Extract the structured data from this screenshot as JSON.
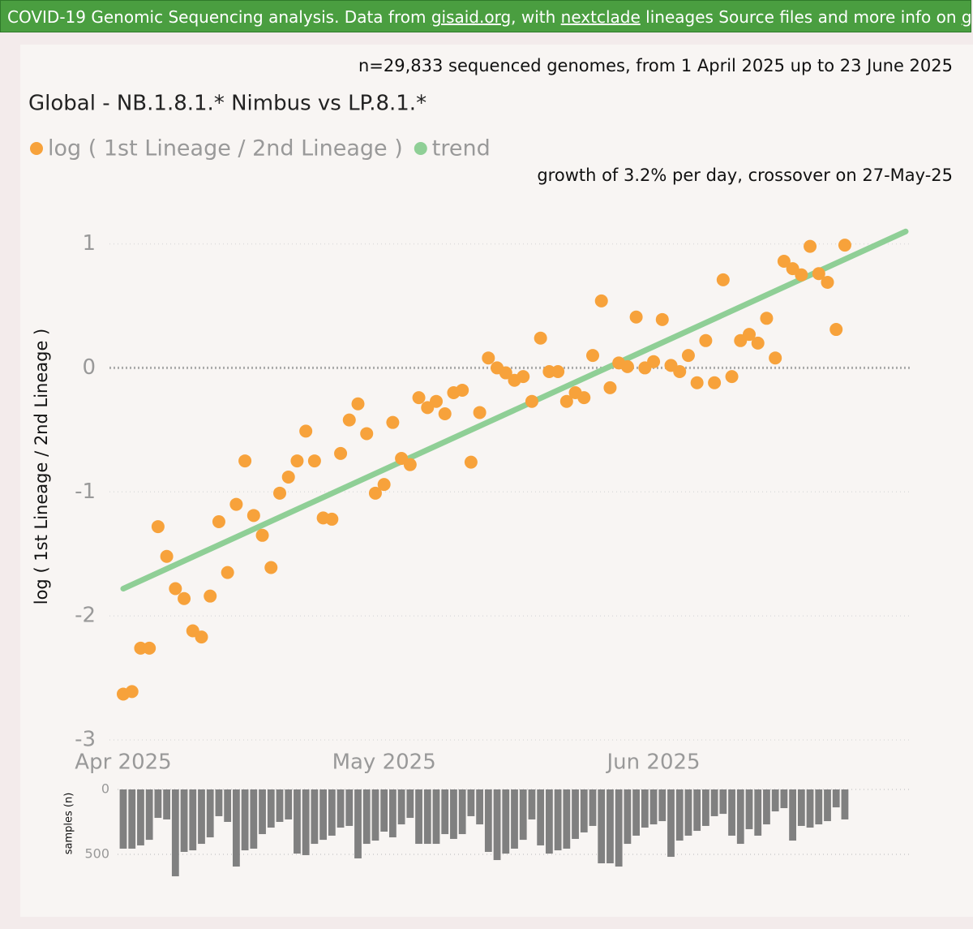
{
  "header": {
    "segments": [
      "COVID-19 Genomic Sequencing analysis. Data from ",
      "gisaid.org",
      ", with ",
      "nextclade",
      " lineages Source files and more info on ",
      "github"
    ]
  },
  "chart_data": [
    {
      "type": "scatter",
      "title": "Global - NB.1.8.1.* Nimbus vs LP.8.1.*",
      "subtitle": "n=29,833 sequenced genomes, from 1 April 2025 up to 23 June 2025",
      "annotation": "growth of 3.2% per day, crossover on 27-May-25",
      "ylabel": "log ( 1st Lineage / 2nd Lineage )",
      "xlim": [
        "2025-04-01",
        "2025-06-30"
      ],
      "xticks": [
        {
          "value": "2025-04-01",
          "label": "Apr 2025"
        },
        {
          "value": "2025-05-01",
          "label": "May 2025"
        },
        {
          "value": "2025-06-01",
          "label": "Jun 2025"
        }
      ],
      "ylim": [
        -3,
        1.2
      ],
      "yticks": [
        1,
        0,
        -1,
        -2,
        -3
      ],
      "grid": true,
      "legend": "top-left",
      "series": [
        {
          "name": "log ( 1st Lineage / 2nd Lineage )",
          "color": "#f7a23b",
          "mode": "markers",
          "x": [
            "2025-04-01",
            "2025-04-02",
            "2025-04-03",
            "2025-04-04",
            "2025-04-05",
            "2025-04-06",
            "2025-04-07",
            "2025-04-08",
            "2025-04-09",
            "2025-04-10",
            "2025-04-11",
            "2025-04-12",
            "2025-04-13",
            "2025-04-14",
            "2025-04-15",
            "2025-04-16",
            "2025-04-17",
            "2025-04-18",
            "2025-04-19",
            "2025-04-20",
            "2025-04-21",
            "2025-04-22",
            "2025-04-23",
            "2025-04-24",
            "2025-04-25",
            "2025-04-26",
            "2025-04-27",
            "2025-04-28",
            "2025-04-29",
            "2025-04-30",
            "2025-05-01",
            "2025-05-02",
            "2025-05-03",
            "2025-05-04",
            "2025-05-05",
            "2025-05-06",
            "2025-05-07",
            "2025-05-08",
            "2025-05-09",
            "2025-05-10",
            "2025-05-11",
            "2025-05-12",
            "2025-05-13",
            "2025-05-14",
            "2025-05-15",
            "2025-05-16",
            "2025-05-17",
            "2025-05-18",
            "2025-05-19",
            "2025-05-20",
            "2025-05-21",
            "2025-05-22",
            "2025-05-23",
            "2025-05-24",
            "2025-05-25",
            "2025-05-26",
            "2025-05-27",
            "2025-05-28",
            "2025-05-29",
            "2025-05-30",
            "2025-05-31",
            "2025-06-01",
            "2025-06-02",
            "2025-06-03",
            "2025-06-04",
            "2025-06-05",
            "2025-06-06",
            "2025-06-07",
            "2025-06-08",
            "2025-06-09",
            "2025-06-10",
            "2025-06-11",
            "2025-06-12",
            "2025-06-13",
            "2025-06-14",
            "2025-06-15",
            "2025-06-16",
            "2025-06-17",
            "2025-06-18",
            "2025-06-19",
            "2025-06-20",
            "2025-06-21",
            "2025-06-22",
            "2025-06-23"
          ],
          "values": [
            -2.63,
            -2.61,
            -2.26,
            -2.26,
            -1.28,
            -1.52,
            -1.78,
            -1.86,
            -2.12,
            -2.17,
            -1.84,
            -1.24,
            -1.65,
            -1.1,
            -0.75,
            -1.19,
            -1.35,
            -1.61,
            -1.01,
            -0.88,
            -0.75,
            -0.51,
            -0.75,
            -1.21,
            -1.22,
            -0.69,
            -0.42,
            -0.29,
            -0.53,
            -1.01,
            -0.94,
            -0.44,
            -0.73,
            -0.78,
            -0.24,
            -0.32,
            -0.27,
            -0.37,
            -0.2,
            -0.18,
            -0.76,
            -0.36,
            0.08,
            0.0,
            -0.04,
            -0.1,
            -0.07,
            -0.27,
            0.24,
            -0.03,
            -0.03,
            -0.27,
            -0.2,
            -0.24,
            0.1,
            0.54,
            -0.16,
            0.04,
            0.01,
            0.41,
            0.0,
            0.05,
            0.39,
            0.02,
            -0.03,
            0.1,
            -0.12,
            0.22,
            -0.12,
            0.71,
            -0.07,
            0.22,
            0.27,
            0.2,
            0.4,
            0.08,
            0.86,
            0.8,
            0.75,
            0.98,
            0.76,
            0.69,
            0.31,
            0.99
          ]
        },
        {
          "name": "trend",
          "color": "#8fcf96",
          "mode": "line",
          "x": [
            "2025-04-01",
            "2025-06-30"
          ],
          "values": [
            -1.78,
            1.1
          ]
        }
      ]
    },
    {
      "type": "bar",
      "ylabel": "samples (n)",
      "xlim": [
        "2025-04-01",
        "2025-06-30"
      ],
      "ylim": [
        0,
        700
      ],
      "y_inverted": true,
      "yticks": [
        0,
        500
      ],
      "color": "#808080",
      "x": [
        "2025-04-01",
        "2025-04-02",
        "2025-04-03",
        "2025-04-04",
        "2025-04-05",
        "2025-04-06",
        "2025-04-07",
        "2025-04-08",
        "2025-04-09",
        "2025-04-10",
        "2025-04-11",
        "2025-04-12",
        "2025-04-13",
        "2025-04-14",
        "2025-04-15",
        "2025-04-16",
        "2025-04-17",
        "2025-04-18",
        "2025-04-19",
        "2025-04-20",
        "2025-04-21",
        "2025-04-22",
        "2025-04-23",
        "2025-04-24",
        "2025-04-25",
        "2025-04-26",
        "2025-04-27",
        "2025-04-28",
        "2025-04-29",
        "2025-04-30",
        "2025-05-01",
        "2025-05-02",
        "2025-05-03",
        "2025-05-04",
        "2025-05-05",
        "2025-05-06",
        "2025-05-07",
        "2025-05-08",
        "2025-05-09",
        "2025-05-10",
        "2025-05-11",
        "2025-05-12",
        "2025-05-13",
        "2025-05-14",
        "2025-05-15",
        "2025-05-16",
        "2025-05-17",
        "2025-05-18",
        "2025-05-19",
        "2025-05-20",
        "2025-05-21",
        "2025-05-22",
        "2025-05-23",
        "2025-05-24",
        "2025-05-25",
        "2025-05-26",
        "2025-05-27",
        "2025-05-28",
        "2025-05-29",
        "2025-05-30",
        "2025-05-31",
        "2025-06-01",
        "2025-06-02",
        "2025-06-03",
        "2025-06-04",
        "2025-06-05",
        "2025-06-06",
        "2025-06-07",
        "2025-06-08",
        "2025-06-09",
        "2025-06-10",
        "2025-06-11",
        "2025-06-12",
        "2025-06-13",
        "2025-06-14",
        "2025-06-15",
        "2025-06-16",
        "2025-06-17",
        "2025-06-18",
        "2025-06-19",
        "2025-06-20",
        "2025-06-21",
        "2025-06-22",
        "2025-06-23"
      ],
      "values": [
        456,
        456,
        431,
        388,
        219,
        231,
        669,
        481,
        469,
        419,
        369,
        206,
        250,
        594,
        469,
        456,
        344,
        294,
        250,
        231,
        494,
        506,
        419,
        388,
        356,
        294,
        281,
        531,
        419,
        394,
        325,
        369,
        269,
        219,
        419,
        419,
        419,
        344,
        381,
        344,
        206,
        269,
        481,
        544,
        494,
        456,
        388,
        231,
        431,
        494,
        469,
        456,
        381,
        331,
        281,
        569,
        569,
        594,
        419,
        356,
        294,
        269,
        244,
        519,
        394,
        356,
        319,
        281,
        206,
        188,
        356,
        419,
        306,
        356,
        269,
        169,
        144,
        394,
        281,
        294,
        269,
        244,
        138,
        231
      ]
    }
  ]
}
